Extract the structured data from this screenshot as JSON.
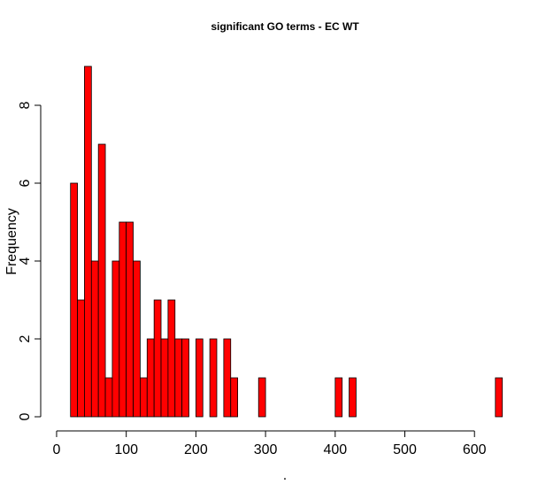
{
  "chart_data": {
    "type": "histogram",
    "title": "significant GO terms - EC WT",
    "xlabel": ".",
    "ylabel": "Frequency",
    "bins": [
      20,
      30,
      40,
      50,
      60,
      70,
      80,
      90,
      100,
      110,
      120,
      130,
      140,
      150,
      160,
      170,
      180,
      190,
      200,
      210,
      220,
      230,
      240,
      250,
      260,
      270,
      280,
      290,
      300,
      310,
      320,
      330,
      340,
      350,
      360,
      370,
      380,
      390,
      400,
      410,
      420,
      430,
      440,
      450,
      460,
      470,
      480,
      490,
      500,
      510,
      520,
      530,
      540,
      550,
      560,
      570,
      580,
      590,
      600,
      610,
      620,
      630,
      640
    ],
    "values": [
      6,
      3,
      9,
      4,
      7,
      1,
      4,
      5,
      5,
      4,
      1,
      2,
      3,
      2,
      3,
      2,
      2,
      0,
      2,
      0,
      2,
      0,
      2,
      1,
      0,
      0,
      0,
      1,
      0,
      0,
      0,
      0,
      0,
      0,
      0,
      0,
      0,
      0,
      1,
      0,
      1,
      0,
      0,
      0,
      0,
      0,
      0,
      0,
      0,
      0,
      0,
      0,
      0,
      0,
      0,
      0,
      0,
      0,
      0,
      0,
      0,
      1
    ],
    "color": "#ff0000",
    "xlim": [
      20,
      640
    ],
    "ylim": [
      0,
      9
    ],
    "xticks": [
      0,
      100,
      200,
      300,
      400,
      500,
      600
    ],
    "yticks": [
      0,
      2,
      4,
      6,
      8
    ]
  }
}
